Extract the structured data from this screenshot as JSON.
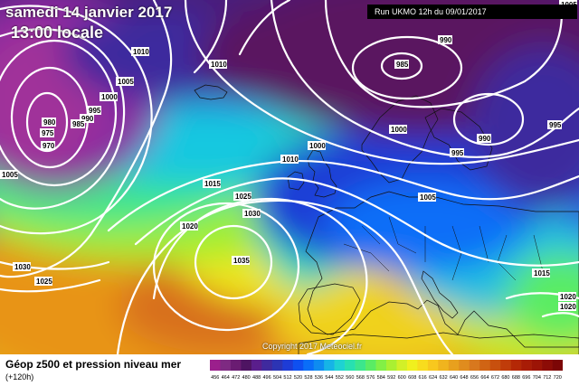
{
  "header": {
    "date": "samedi 14 janvier 2017",
    "time": "13:00 locale",
    "run": "Run UKMO 12h du 09/01/2017"
  },
  "copyright": "Copyright 2017 Meteociel.fr",
  "legend": {
    "title": "Géop z500 et pression niveau mer",
    "subtitle": "(+120h)",
    "values": [
      "456",
      "464",
      "472",
      "480",
      "488",
      "496",
      "504",
      "512",
      "520",
      "528",
      "536",
      "544",
      "552",
      "560",
      "568",
      "576",
      "584",
      "592",
      "600",
      "608",
      "616",
      "624",
      "632",
      "640",
      "648",
      "656",
      "664",
      "672",
      "680",
      "688",
      "696",
      "704",
      "712",
      "720"
    ],
    "colors": [
      "#9b1f8c",
      "#7e2a82",
      "#6a1c72",
      "#4e1462",
      "#5a1e8c",
      "#3f2a9e",
      "#2c34b4",
      "#1e3cd6",
      "#0f50f0",
      "#0a6ef8",
      "#0e8cf0",
      "#16b4e6",
      "#1ed2d2",
      "#28e0b0",
      "#3ce68c",
      "#5aec64",
      "#82f046",
      "#aaf032",
      "#d2f028",
      "#f0f01e",
      "#f8dc1e",
      "#f8c81e",
      "#f0b41e",
      "#e8a01e",
      "#e08c1e",
      "#d8781e",
      "#d06414",
      "#c8500e",
      "#c03c0a",
      "#b42806",
      "#a81c06",
      "#9c1406",
      "#8c0c06",
      "#7c0606"
    ]
  },
  "isobar_labels": [
    {
      "text": "1010",
      "x": 1010,
      "rel": "a"
    },
    {
      "text": "1010",
      "rel": "b"
    },
    {
      "text": "1005",
      "rel": "c"
    },
    {
      "text": "1000",
      "rel": "d"
    },
    {
      "text": "995",
      "rel": "e"
    },
    {
      "text": "990",
      "rel": "f"
    },
    {
      "text": "985",
      "rel": "g"
    },
    {
      "text": "980",
      "rel": "h"
    },
    {
      "text": "975",
      "rel": "i"
    },
    {
      "text": "970",
      "rel": "j"
    },
    {
      "text": "990",
      "rel": "k"
    },
    {
      "text": "985",
      "rel": "l"
    },
    {
      "text": "1000",
      "rel": "m"
    },
    {
      "text": "990",
      "rel": "n"
    },
    {
      "text": "995",
      "rel": "o"
    },
    {
      "text": "995",
      "rel": "p"
    },
    {
      "text": "1000",
      "rel": "q"
    },
    {
      "text": "1010",
      "rel": "r"
    },
    {
      "text": "1005",
      "rel": "s"
    },
    {
      "text": "1015",
      "rel": "t"
    },
    {
      "text": "1025",
      "rel": "u"
    },
    {
      "text": "1030",
      "rel": "v"
    },
    {
      "text": "1020",
      "rel": "w"
    },
    {
      "text": "1035",
      "rel": "x"
    },
    {
      "text": "1030",
      "rel": "y"
    },
    {
      "text": "1025",
      "rel": "z"
    },
    {
      "text": "1005",
      "rel": "aa"
    },
    {
      "text": "1005",
      "rel": "ab"
    },
    {
      "text": "1015",
      "rel": "ac"
    },
    {
      "text": "1020",
      "rel": "ad"
    },
    {
      "text": "1020",
      "rel": "ae"
    }
  ]
}
